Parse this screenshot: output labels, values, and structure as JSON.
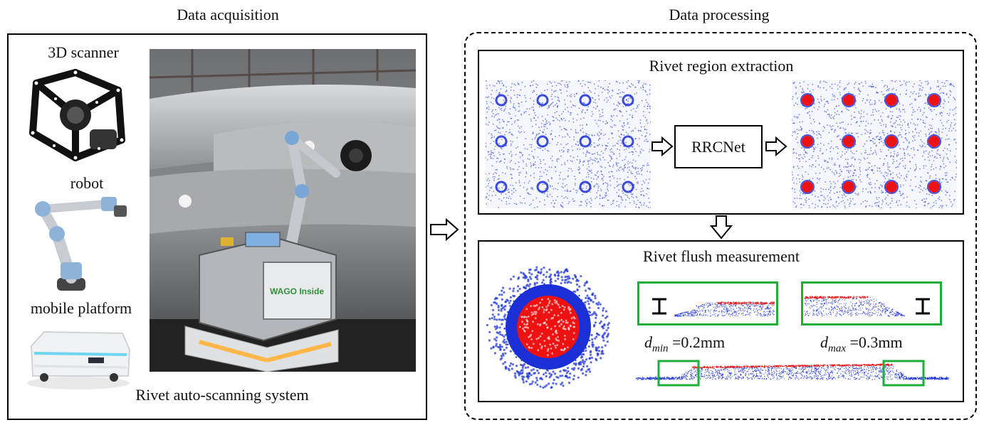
{
  "left": {
    "title": "Data acquisition",
    "labels": {
      "scanner": "3D scanner",
      "robot": "robot",
      "platform": "mobile platform"
    },
    "photo_text": "WAGO Inside",
    "caption": "Rivet auto-scanning system"
  },
  "right": {
    "title": "Data processing",
    "extraction": {
      "title": "Rivet region extraction",
      "network": "RRCNet"
    },
    "measurement": {
      "title": "Rivet flush measurement",
      "d_min_symbol": "d",
      "d_min_sub": "min",
      "d_min_value": "=0.2mm",
      "d_max_symbol": "d",
      "d_max_sub": "max",
      "d_max_value": "=0.3mm"
    }
  },
  "colors": {
    "points": "#1a2fd6",
    "rivet": "#ee1111",
    "zoom_box": "#1fae3c",
    "frame": "#000000"
  }
}
